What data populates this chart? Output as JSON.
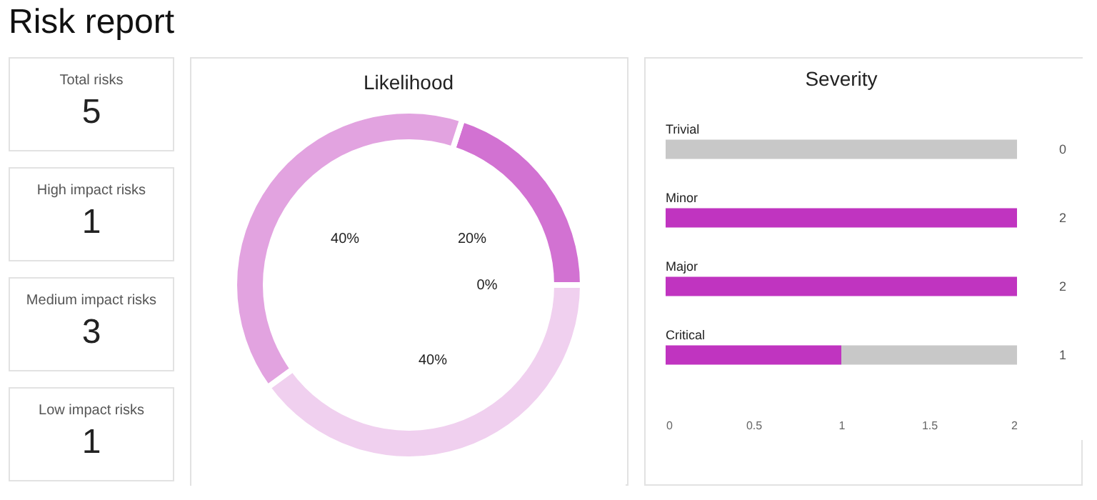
{
  "chart_data": [
    {
      "type": "other",
      "title": "Risk report",
      "categories": [
        "Total risks",
        "High impact risks",
        "Medium impact risks",
        "Low impact risks"
      ],
      "values": [
        5,
        1,
        3,
        1
      ],
      "data_labels": true
    },
    {
      "type": "donut",
      "title": "Likelihood",
      "categories": [
        null,
        null,
        null,
        null
      ],
      "values": [
        20,
        0,
        40,
        40
      ],
      "colors": [
        "#d272d2",
        "#c03cc0",
        "#f0d0ef",
        "#e2a3e0"
      ],
      "value_labels": [
        "20%",
        "0%",
        "40%",
        "40%"
      ]
    },
    {
      "type": "bar",
      "orientation": "horizontal",
      "stacked": true,
      "title": "Severity",
      "categories": [
        "Trivial",
        "Minor",
        "Major",
        "Critical"
      ],
      "series": [
        {
          "color": "#c034c0",
          "values": [
            0,
            2,
            2,
            1
          ],
          "value_labels": [
            "0",
            "2",
            "2",
            "1"
          ]
        },
        {
          "color": "#c8c8c8",
          "values": [
            2,
            0,
            0,
            1
          ]
        }
      ],
      "xlim": [
        0,
        2
      ],
      "xticks": [
        0,
        0.5,
        1,
        1.5,
        2
      ]
    }
  ]
}
